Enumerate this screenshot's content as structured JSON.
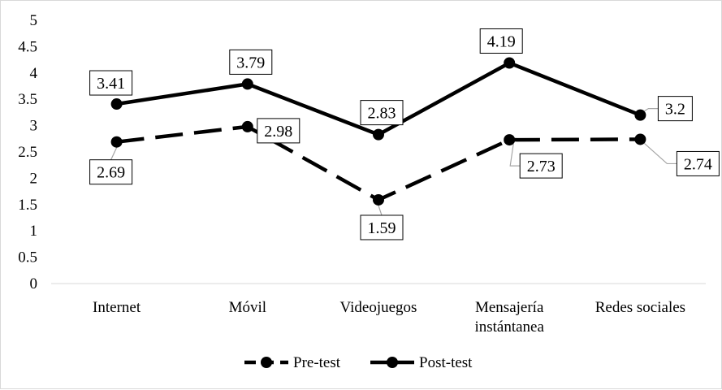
{
  "chart_data": {
    "type": "line",
    "title": "",
    "xlabel": "",
    "ylabel": "",
    "categories": [
      "Internet",
      "Móvil",
      "Videojuegos",
      "Mensajería instántanea",
      "Redes sociales"
    ],
    "category_lines": [
      [
        "Internet"
      ],
      [
        "Móvil"
      ],
      [
        "Videojuegos"
      ],
      [
        "Mensajería",
        "instántanea"
      ],
      [
        "Redes sociales"
      ]
    ],
    "ylim": [
      0,
      5
    ],
    "yticks": [
      "0",
      "0.5",
      "1",
      "1.5",
      "2",
      "2.5",
      "3",
      "3.5",
      "4",
      "4.5",
      "5"
    ],
    "grid": false,
    "legend_position": "bottom",
    "series": [
      {
        "name": "Pre-test",
        "style": "dashed",
        "color": "#000000",
        "values": [
          2.69,
          2.98,
          1.59,
          2.73,
          2.74
        ],
        "labels": [
          "2.69",
          "2.98",
          "1.59",
          "2.73",
          "2.74"
        ]
      },
      {
        "name": "Post-test",
        "style": "solid",
        "color": "#000000",
        "values": [
          3.41,
          3.79,
          2.83,
          4.19,
          3.2
        ],
        "labels": [
          "3.41",
          "3.79",
          "2.83",
          "4.19",
          "3.2"
        ]
      }
    ]
  }
}
